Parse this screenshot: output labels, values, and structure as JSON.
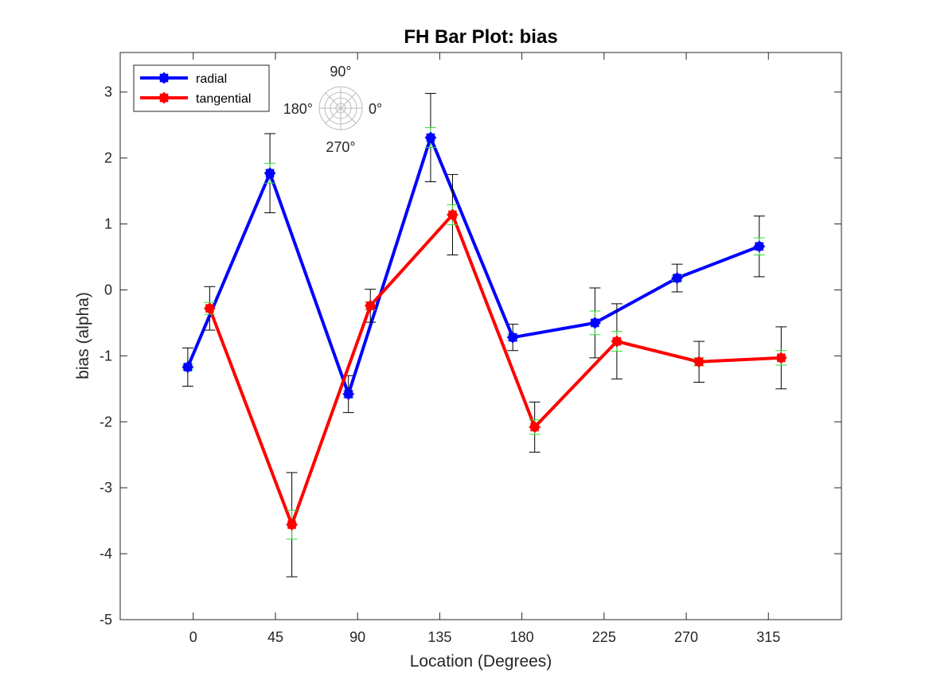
{
  "chart_data": {
    "type": "line",
    "title": "FH Bar Plot: bias",
    "xlabel": "Location (Degrees)",
    "ylabel": "bias (alpha)",
    "xlim": [
      -40,
      355
    ],
    "ylim": [
      -5,
      3.6
    ],
    "xticks": [
      0,
      45,
      90,
      135,
      180,
      225,
      270,
      315
    ],
    "xtick_labels": [
      "0",
      "45",
      "90",
      "135",
      "180",
      "225",
      "270",
      "315"
    ],
    "yticks": [
      -5,
      -4,
      -3,
      -2,
      -1,
      0,
      1,
      2,
      3
    ],
    "ytick_labels": [
      "-5",
      "-4",
      "-3",
      "-2",
      "-1",
      "0",
      "1",
      "2",
      "3"
    ],
    "grid": false,
    "legend": "top-left",
    "series": [
      {
        "name": "radial",
        "color": "#0000ff",
        "x": [
          -3,
          42,
          85,
          130,
          175,
          220,
          265,
          310
        ],
        "y": [
          -1.17,
          1.77,
          -1.58,
          2.31,
          -0.72,
          -0.5,
          0.18,
          0.66
        ],
        "err_black": [
          0.29,
          0.6,
          0.28,
          0.67,
          0.2,
          0.53,
          0.21,
          0.46
        ],
        "err_green": [
          0.04,
          0.15,
          0.05,
          0.15,
          0.05,
          0.18,
          0.04,
          0.13
        ]
      },
      {
        "name": "tangential",
        "color": "#ff0000",
        "x": [
          9,
          54,
          97,
          142,
          187,
          232,
          277,
          322
        ],
        "y": [
          -0.28,
          -3.56,
          -0.24,
          1.14,
          -2.08,
          -0.78,
          -1.09,
          -1.03
        ],
        "err_black": [
          0.33,
          0.79,
          0.25,
          0.61,
          0.38,
          0.57,
          0.31,
          0.47
        ],
        "err_green": [
          0.09,
          0.22,
          0.06,
          0.15,
          0.11,
          0.15,
          0.06,
          0.11
        ]
      }
    ],
    "inset_labels": {
      "top": "90°",
      "left": "180°",
      "right": "0°",
      "bottom": "270°"
    }
  }
}
